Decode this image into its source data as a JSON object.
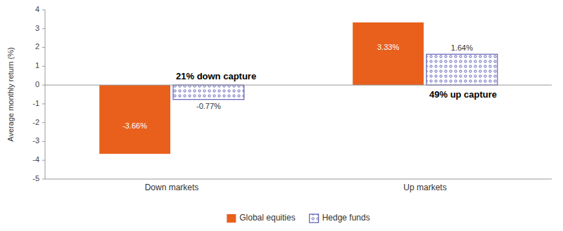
{
  "chart_data": {
    "type": "bar",
    "categories": [
      "Down markets",
      "Up markets"
    ],
    "series": [
      {
        "name": "Global equities",
        "color": "#E8601C",
        "values": [
          -3.66,
          3.33
        ],
        "value_labels": [
          "-3.66%",
          "3.33%"
        ]
      },
      {
        "name": "Hedge funds",
        "color": "#4444AA",
        "values": [
          -0.77,
          1.64
        ],
        "value_labels": [
          "-0.77%",
          "1.64%"
        ]
      }
    ],
    "ylabel": "Average monthly return (%)",
    "ylim": [
      -5,
      4
    ],
    "yticks": [
      -5,
      -4,
      -3,
      -2,
      -1,
      0,
      1,
      2,
      3,
      4
    ],
    "annotations": [
      "21% down capture",
      "49% up capture"
    ],
    "data_labels": true,
    "grid": false,
    "legend": "bottom"
  }
}
